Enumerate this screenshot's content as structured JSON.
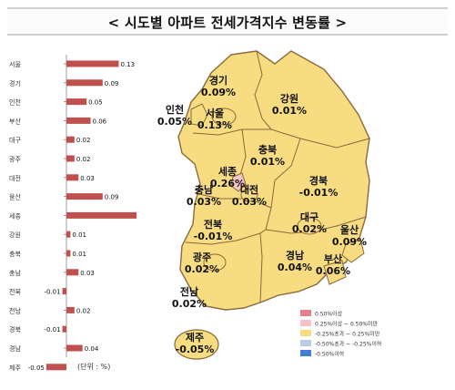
{
  "title": "< 시도별 아파트 전세가격지수 변동률 >",
  "unit_note": "(단위 : %)",
  "chart_data": {
    "type": "bar",
    "orientation": "horizontal",
    "categories": [
      "서울",
      "경기",
      "인천",
      "부산",
      "대구",
      "광주",
      "대전",
      "울산",
      "세종",
      "강원",
      "충북",
      "충남",
      "전북",
      "전남",
      "경북",
      "경남",
      "제주"
    ],
    "values": [
      0.13,
      0.09,
      0.05,
      0.06,
      0.02,
      0.02,
      0.03,
      0.09,
      0.26,
      0.01,
      0.01,
      0.03,
      -0.01,
      0.02,
      -0.01,
      0.04,
      -0.05
    ],
    "value_labels": [
      "0.13",
      "0.09",
      "0.05",
      "0.06",
      "0.02",
      "0.02",
      "0.03",
      "0.09",
      "0.26",
      "0.01",
      "0.01",
      "0.03",
      "-0.01",
      "0.02",
      "-0.01",
      "0.04",
      "-0.05"
    ],
    "bar_color": "#c0504d",
    "xlim": [
      -0.05,
      0.26
    ]
  },
  "map": {
    "regions": [
      {
        "name": "경기",
        "value": "0.09%"
      },
      {
        "name": "강원",
        "value": "0.01%"
      },
      {
        "name": "인천",
        "value": "0.05%"
      },
      {
        "name": "서울",
        "value": "0.13%"
      },
      {
        "name": "충북",
        "value": "0.01%"
      },
      {
        "name": "세종",
        "value": "0.26%"
      },
      {
        "name": "충남",
        "value": "0.03%"
      },
      {
        "name": "대전",
        "value": "0.03%"
      },
      {
        "name": "경북",
        "value": "-0.01%"
      },
      {
        "name": "전북",
        "value": "-0.01%"
      },
      {
        "name": "대구",
        "value": "0.02%"
      },
      {
        "name": "울산",
        "value": "0.09%"
      },
      {
        "name": "광주",
        "value": "0.02%"
      },
      {
        "name": "경남",
        "value": "0.04%"
      },
      {
        "name": "부산",
        "value": "0.06%"
      },
      {
        "name": "전남",
        "value": "0.02%"
      },
      {
        "name": "제주",
        "value": "-0.05%"
      }
    ],
    "legend": [
      {
        "label": "0.50%이상",
        "color": "#e8828a"
      },
      {
        "label": "0.25%이상 ~ 0.50%미만",
        "color": "#f3c3c6"
      },
      {
        "label": "-0.25%초과 ~ 0.25%미만",
        "color": "#f7dc82"
      },
      {
        "label": "-0.50%초과 ~ -0.25%이하",
        "color": "#b8cce4"
      },
      {
        "label": "-0.50%이하",
        "color": "#3f7fcf"
      }
    ],
    "colors": {
      "land": "#f7dc82",
      "border": "#8a6a3a",
      "sejong": "#f3c3c6"
    }
  }
}
